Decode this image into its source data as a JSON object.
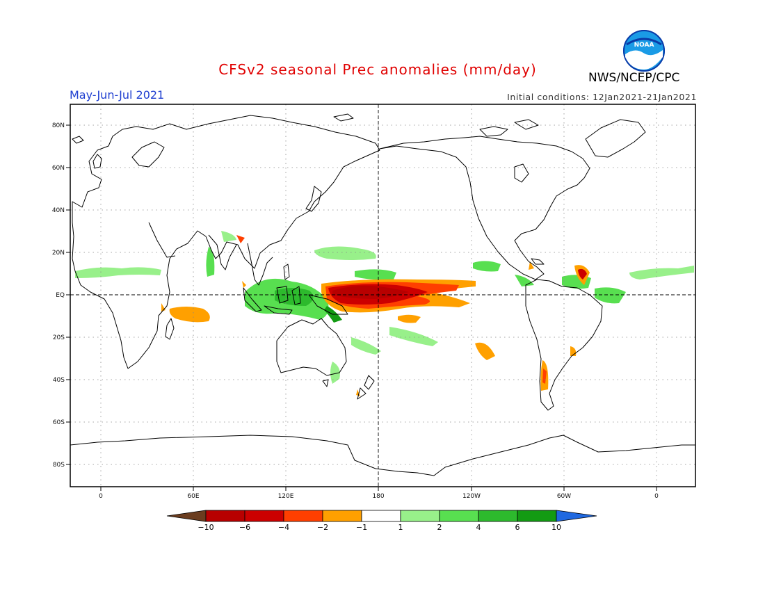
{
  "title": "CFSv2 seasonal Prec anomalies (mm/day)",
  "period": "May-Jun-Jul 2021",
  "initial_conditions": "Initial conditions: 12Jan2021-21Jan2021",
  "agency": "NWS/NCEP/CPC",
  "logo_text": "NOAA",
  "lat_labels": [
    "80N",
    "60N",
    "40N",
    "20N",
    "EQ",
    "20S",
    "40S",
    "60S",
    "80S"
  ],
  "lon_labels": [
    "0",
    "60E",
    "120E",
    "180",
    "120W",
    "60W",
    "0"
  ],
  "colorbar": {
    "ticks": [
      "-10",
      "-6",
      "-4",
      "-2",
      "-1",
      "1",
      "2",
      "4",
      "6",
      "10"
    ],
    "colors": [
      "#6b3d1f",
      "#b80000",
      "#cc0000",
      "#ff3f00",
      "#ffa000",
      "#ffffff",
      "#98f08a",
      "#58df50",
      "#2dba2d",
      "#139b13",
      "#1f68e0"
    ]
  }
}
